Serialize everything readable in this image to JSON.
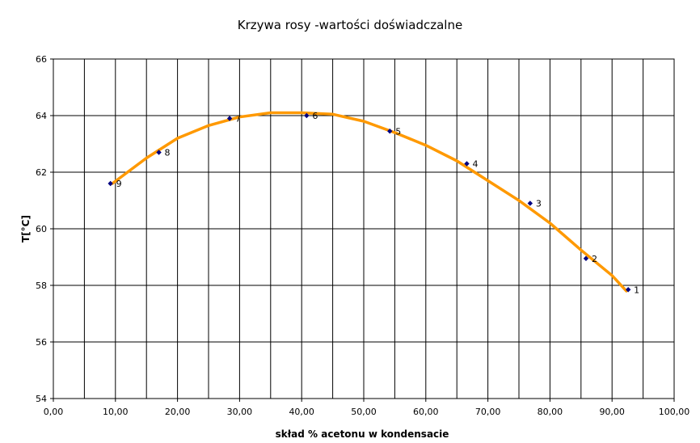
{
  "chart_data": {
    "type": "scatter",
    "title": "Krzywa rosy -wartości doświadczalne",
    "xlabel": "skład % acetonu w kondensacie",
    "ylabel": "T[°C]",
    "xlim": [
      0,
      100
    ],
    "ylim": [
      54,
      66
    ],
    "x_ticks": [
      "0,00",
      "10,00",
      "20,00",
      "30,00",
      "40,00",
      "50,00",
      "60,00",
      "70,00",
      "80,00",
      "90,00",
      "100,00"
    ],
    "y_ticks": [
      "54",
      "56",
      "58",
      "60",
      "62",
      "64",
      "66"
    ],
    "grid": true,
    "legend": "none",
    "points": [
      {
        "label": "1",
        "x": 92.6,
        "y": 57.85
      },
      {
        "label": "2",
        "x": 85.8,
        "y": 58.95
      },
      {
        "label": "3",
        "x": 76.8,
        "y": 60.9
      },
      {
        "label": "4",
        "x": 66.6,
        "y": 62.3
      },
      {
        "label": "5",
        "x": 54.2,
        "y": 63.45
      },
      {
        "label": "6",
        "x": 40.8,
        "y": 64.0
      },
      {
        "label": "7",
        "x": 28.4,
        "y": 63.9
      },
      {
        "label": "8",
        "x": 17.0,
        "y": 62.7
      },
      {
        "label": "9",
        "x": 9.2,
        "y": 61.6
      }
    ],
    "trendline": {
      "x": [
        9.5,
        15,
        20,
        25,
        30,
        35,
        40,
        45,
        50,
        55,
        60,
        65,
        70,
        75,
        80,
        85,
        90,
        92.3
      ],
      "y": [
        61.6,
        62.5,
        63.2,
        63.65,
        63.95,
        64.1,
        64.1,
        64.05,
        63.8,
        63.4,
        62.95,
        62.4,
        61.7,
        61.0,
        60.2,
        59.25,
        58.35,
        57.8
      ]
    },
    "colors": {
      "trendline": "#ff9900",
      "marker": "#000080",
      "grid": "#000000",
      "background": "#ffffff"
    }
  }
}
